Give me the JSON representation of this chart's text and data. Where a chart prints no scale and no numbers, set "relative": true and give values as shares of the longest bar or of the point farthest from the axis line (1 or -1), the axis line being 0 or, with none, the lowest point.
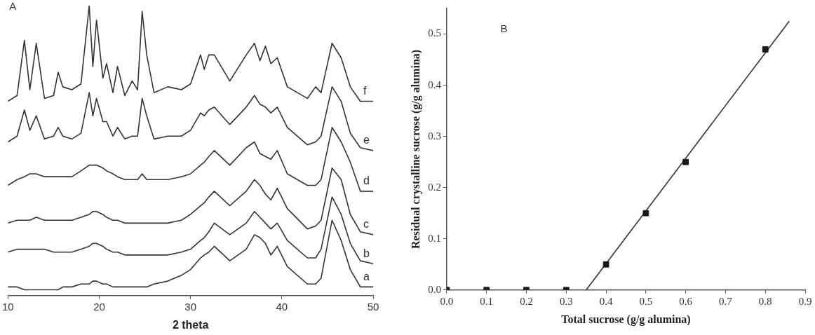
{
  "chart_data": [
    {
      "type": "line",
      "xlabel": "2 theta",
      "relative": true,
      "marker": "none",
      "annotations": [
        "A"
      ],
      "xlim": [
        10,
        50
      ],
      "xticks": [
        10,
        20,
        30,
        40,
        50
      ],
      "x": [
        10,
        11,
        11.8,
        12.4,
        13.1,
        14,
        15,
        15.5,
        16,
        17,
        18,
        18.9,
        19.3,
        19.7,
        20.4,
        20.8,
        21.5,
        22,
        22.8,
        23.6,
        24.2,
        24.7,
        25.2,
        26,
        27.5,
        29,
        30,
        31.1,
        31.5,
        32,
        32.6,
        34.3,
        36.1,
        37,
        37.6,
        38.2,
        38.8,
        39.5,
        40.6,
        42.8,
        43.7,
        44.3,
        45.5,
        46.5,
        47.5,
        48.6,
        50
      ],
      "series": [
        {
          "name": "f",
          "color": "#333333",
          "values": [
            0.67,
            0.69,
            0.88,
            0.71,
            0.87,
            0.68,
            0.69,
            0.77,
            0.72,
            0.71,
            0.73,
            1.0,
            0.79,
            0.95,
            0.75,
            0.8,
            0.7,
            0.79,
            0.69,
            0.74,
            0.71,
            0.98,
            0.83,
            0.7,
            0.72,
            0.71,
            0.73,
            0.83,
            0.78,
            0.83,
            0.83,
            0.74,
            0.83,
            0.87,
            0.81,
            0.86,
            0.8,
            0.82,
            0.72,
            0.68,
            0.72,
            0.7,
            0.87,
            0.82,
            0.72,
            0.67,
            0.67
          ]
        },
        {
          "name": "e",
          "color": "#333333",
          "values": [
            0.53,
            0.55,
            0.64,
            0.57,
            0.62,
            0.54,
            0.55,
            0.58,
            0.55,
            0.54,
            0.56,
            0.7,
            0.62,
            0.68,
            0.6,
            0.6,
            0.55,
            0.58,
            0.54,
            0.55,
            0.55,
            0.68,
            0.62,
            0.54,
            0.55,
            0.55,
            0.57,
            0.63,
            0.62,
            0.64,
            0.65,
            0.59,
            0.65,
            0.69,
            0.66,
            0.65,
            0.63,
            0.65,
            0.58,
            0.52,
            0.53,
            0.55,
            0.72,
            0.67,
            0.56,
            0.51,
            0.5
          ]
        },
        {
          "name": "d",
          "color": "#333333",
          "values": [
            0.38,
            0.4,
            0.41,
            0.42,
            0.42,
            0.41,
            0.41,
            0.41,
            0.41,
            0.41,
            0.43,
            0.45,
            0.45,
            0.45,
            0.44,
            0.43,
            0.42,
            0.41,
            0.4,
            0.4,
            0.4,
            0.42,
            0.4,
            0.4,
            0.4,
            0.41,
            0.42,
            0.45,
            0.46,
            0.48,
            0.5,
            0.45,
            0.51,
            0.53,
            0.49,
            0.48,
            0.47,
            0.5,
            0.42,
            0.38,
            0.38,
            0.4,
            0.58,
            0.53,
            0.46,
            0.36,
            0.36
          ]
        },
        {
          "name": "c",
          "color": "#333333",
          "values": [
            0.25,
            0.26,
            0.26,
            0.26,
            0.27,
            0.26,
            0.26,
            0.26,
            0.26,
            0.26,
            0.27,
            0.28,
            0.29,
            0.29,
            0.28,
            0.27,
            0.26,
            0.26,
            0.25,
            0.25,
            0.25,
            0.25,
            0.25,
            0.25,
            0.25,
            0.26,
            0.28,
            0.31,
            0.32,
            0.34,
            0.36,
            0.31,
            0.36,
            0.4,
            0.38,
            0.35,
            0.33,
            0.37,
            0.3,
            0.23,
            0.24,
            0.26,
            0.44,
            0.4,
            0.28,
            0.22,
            0.21
          ]
        },
        {
          "name": "b",
          "color": "#333333",
          "values": [
            0.15,
            0.16,
            0.16,
            0.16,
            0.16,
            0.16,
            0.15,
            0.15,
            0.15,
            0.15,
            0.16,
            0.17,
            0.18,
            0.18,
            0.17,
            0.16,
            0.15,
            0.15,
            0.14,
            0.14,
            0.14,
            0.14,
            0.14,
            0.14,
            0.14,
            0.15,
            0.16,
            0.19,
            0.2,
            0.22,
            0.25,
            0.21,
            0.25,
            0.29,
            0.27,
            0.25,
            0.23,
            0.25,
            0.19,
            0.13,
            0.13,
            0.16,
            0.34,
            0.28,
            0.18,
            0.12,
            0.11
          ]
        },
        {
          "name": "a",
          "color": "#333333",
          "values": [
            0.03,
            0.03,
            0.02,
            0.02,
            0.02,
            0.02,
            0.02,
            0.02,
            0.03,
            0.03,
            0.04,
            0.04,
            0.05,
            0.05,
            0.04,
            0.04,
            0.03,
            0.03,
            0.03,
            0.03,
            0.03,
            0.03,
            0.03,
            0.04,
            0.05,
            0.07,
            0.09,
            0.13,
            0.14,
            0.15,
            0.17,
            0.12,
            0.16,
            0.21,
            0.2,
            0.18,
            0.14,
            0.17,
            0.1,
            0.04,
            0.04,
            0.06,
            0.26,
            0.19,
            0.09,
            0.03,
            0.03
          ]
        }
      ]
    },
    {
      "type": "scatter",
      "xlabel": "Total sucrose (g/g alumina)",
      "ylabel": "Residual crystalline sucrose (g/g alumina)",
      "annotations": [
        "B"
      ],
      "xlim": [
        0,
        0.9
      ],
      "xticks": [
        {
          "value": 0,
          "label": "0.0"
        },
        0.1,
        0.2,
        0.3,
        0.4,
        0.5,
        0.6,
        0.7,
        0.8,
        0.9
      ],
      "ylim": [
        0,
        0.55
      ],
      "yticks": [
        {
          "value": 0,
          "label": "0.0"
        },
        0.1,
        0.2,
        0.3,
        0.4,
        0.5
      ],
      "x": [
        0,
        0.1,
        0.2,
        0.3,
        0.4,
        0.5,
        0.6,
        0.8
      ],
      "series": [
        {
          "color": "#1a1a1a",
          "marker": "square",
          "values": [
            0,
            0,
            0,
            0,
            0.05,
            0.15,
            0.25,
            0.47
          ]
        },
        {
          "type": "line",
          "marker": "none",
          "color": "#333333",
          "x": [
            0.35,
            0.86
          ],
          "values": [
            0,
            0.525
          ]
        }
      ]
    }
  ]
}
